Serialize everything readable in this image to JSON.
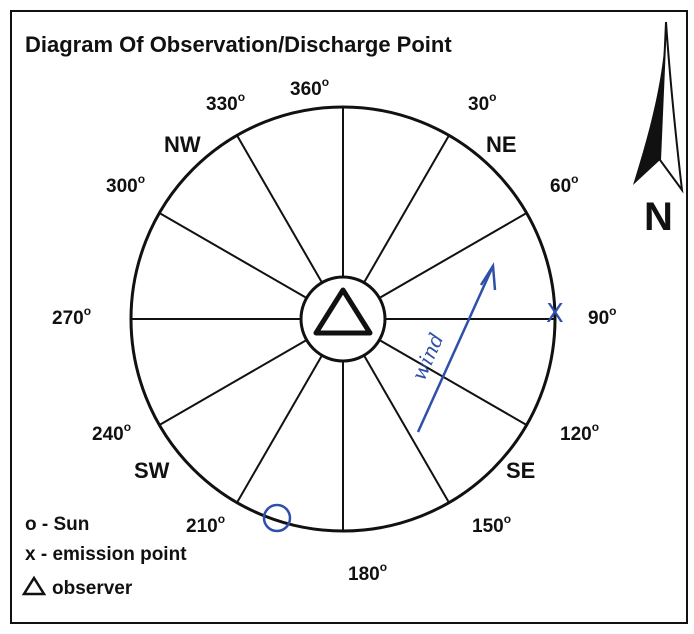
{
  "title": "Diagram Of Observation/Discharge Point",
  "compass": {
    "labels": [
      {
        "number": "360",
        "sup": "o"
      },
      {
        "number": "30",
        "sup": "o"
      },
      {
        "number": "60",
        "sup": "o"
      },
      {
        "number": "90",
        "sup": "o"
      },
      {
        "number": "120",
        "sup": "o"
      },
      {
        "number": "150",
        "sup": "o"
      },
      {
        "number": "180",
        "sup": "o"
      },
      {
        "number": "210",
        "sup": "o"
      },
      {
        "number": "240",
        "sup": "o"
      },
      {
        "number": "270",
        "sup": "o"
      },
      {
        "number": "300",
        "sup": "o"
      },
      {
        "number": "330",
        "sup": "o"
      }
    ],
    "directions": [
      "NE",
      "SE",
      "SW",
      "NW"
    ]
  },
  "north": "N",
  "legend": [
    "o - Sun",
    "x - emission point",
    "observer"
  ],
  "handwriting": {
    "wind": "wind",
    "emission_mark": "X"
  }
}
